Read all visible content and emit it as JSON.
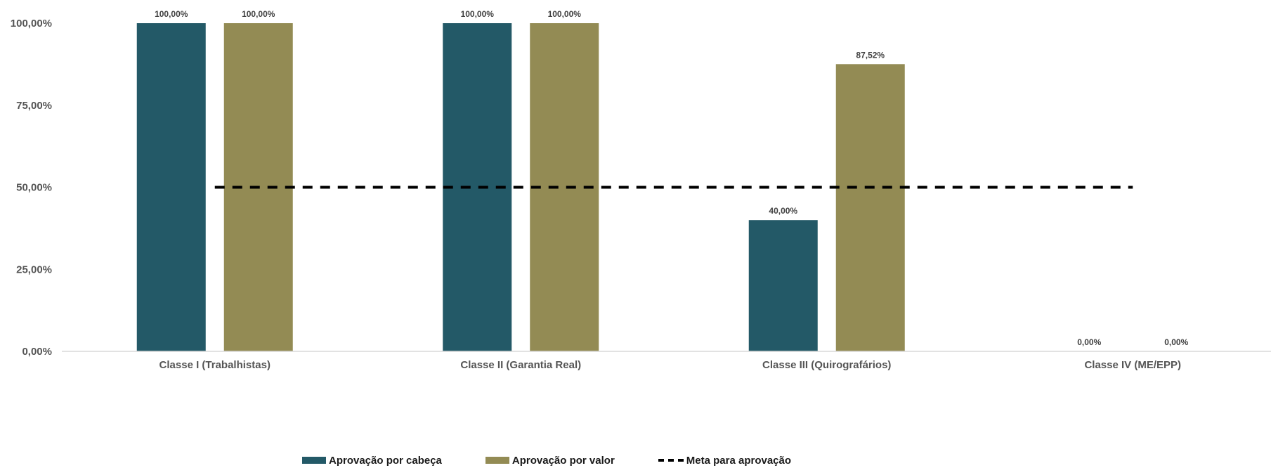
{
  "chart_data": {
    "type": "bar",
    "categories": [
      "Classe I (Trabalhistas)",
      "Classe II (Garantia Real)",
      "Classe III (Quirografários)",
      "Classe IV (ME/EPP)"
    ],
    "series": [
      {
        "name": "Aprovação por cabeça",
        "values": [
          100,
          100,
          40,
          0
        ],
        "labels": [
          "100,00%",
          "100,00%",
          "40,00%",
          "0,00%"
        ],
        "color": "#235967"
      },
      {
        "name": "Aprovação por valor",
        "values": [
          100,
          100,
          87.52,
          0
        ],
        "labels": [
          "100,00%",
          "100,00%",
          "87,52%",
          "0,00%"
        ],
        "color": "#938b54"
      }
    ],
    "reference_line": {
      "name": "Meta para aprovação",
      "value": 50,
      "style": "dashed",
      "color": "#000000"
    },
    "y_ticks": [
      {
        "value": 0,
        "label": "0,00%"
      },
      {
        "value": 25,
        "label": "25,00%"
      },
      {
        "value": 50,
        "label": "50,00%"
      },
      {
        "value": 75,
        "label": "75,00%"
      },
      {
        "value": 100,
        "label": "100,00%"
      }
    ],
    "ylim": [
      0,
      100
    ],
    "grid": false,
    "legend_position": "bottom"
  }
}
